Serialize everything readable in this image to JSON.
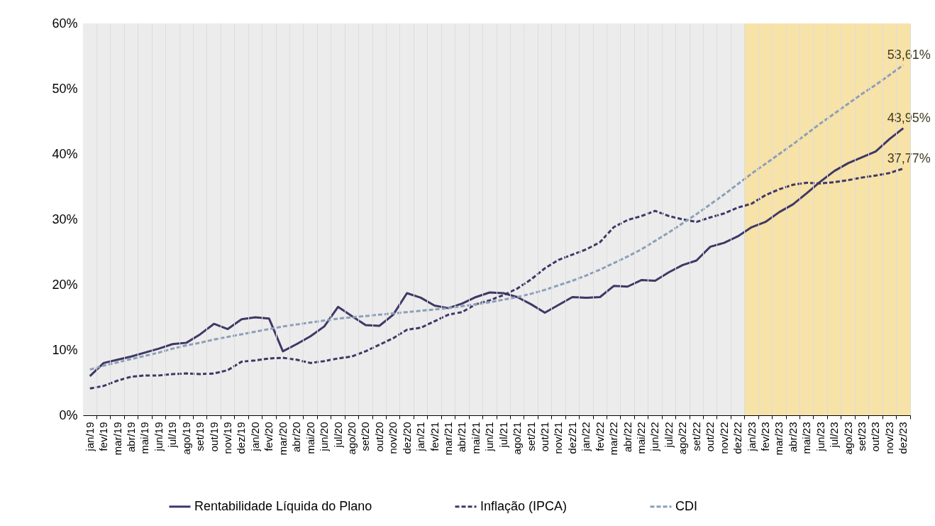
{
  "chart_data": {
    "type": "line",
    "categories": [
      "jan/19",
      "fev/19",
      "mar/19",
      "abr/19",
      "mai/19",
      "jun/19",
      "jul/19",
      "ago/19",
      "set/19",
      "out/19",
      "nov/19",
      "dez/19",
      "jan/20",
      "fev/20",
      "mar/20",
      "abr/20",
      "mai/20",
      "jun/20",
      "jul/20",
      "ago/20",
      "set/20",
      "out/20",
      "nov/20",
      "dez/20",
      "jan/21",
      "fev/21",
      "mar/21",
      "abr/21",
      "mai/21",
      "jun/21",
      "jul/21",
      "ago/21",
      "set/21",
      "out/21",
      "nov/21",
      "dez/21",
      "jan/22",
      "fev/22",
      "mar/22",
      "abr/22",
      "mai/22",
      "jun/22",
      "jul/22",
      "ago/22",
      "set/22",
      "out/22",
      "nov/22",
      "dez/22",
      "jan/23",
      "fev/23",
      "mar/23",
      "abr/23",
      "mai/23",
      "jun/23",
      "jul/23",
      "ago/23",
      "set/23",
      "out/23",
      "nov/23",
      "dez/23"
    ],
    "series": [
      {
        "name": "Rentabilidade Líquida do Plano",
        "color": "#3f3866",
        "line_style": "solid",
        "values": [
          6.0,
          8.0,
          8.5,
          9.0,
          9.6,
          10.2,
          10.9,
          11.1,
          12.4,
          14.0,
          13.2,
          14.7,
          15.0,
          14.8,
          9.8,
          10.9,
          12.1,
          13.6,
          16.6,
          15.2,
          13.8,
          13.7,
          15.4,
          18.7,
          18.0,
          16.8,
          16.4,
          17.1,
          18.1,
          18.8,
          18.7,
          18.1,
          17.0,
          15.7,
          16.9,
          18.1,
          18.0,
          18.1,
          19.8,
          19.7,
          20.7,
          20.6,
          21.9,
          23.0,
          23.7,
          25.8,
          26.4,
          27.4,
          28.8,
          29.6,
          31.1,
          32.3,
          34.0,
          35.8,
          37.4,
          38.6,
          39.5,
          40.4,
          42.3,
          43.95
        ],
        "value_labels": [
          null,
          null,
          null,
          null,
          null,
          null,
          null,
          null,
          null,
          null,
          null,
          null,
          null,
          null,
          null,
          null,
          null,
          null,
          null,
          null,
          null,
          null,
          null,
          null,
          null,
          null,
          null,
          null,
          null,
          null,
          null,
          null,
          null,
          null,
          null,
          null,
          null,
          null,
          null,
          null,
          null,
          null,
          null,
          null,
          null,
          null,
          null,
          null,
          null,
          null,
          null,
          null,
          null,
          null,
          null,
          null,
          null,
          null,
          null,
          "43,95%"
        ]
      },
      {
        "name": "Inflação (IPCA)",
        "color": "#3f3866",
        "line_style": "dashed",
        "values": [
          4.1,
          4.5,
          5.3,
          5.9,
          6.1,
          6.1,
          6.3,
          6.4,
          6.3,
          6.4,
          6.9,
          8.2,
          8.4,
          8.7,
          8.8,
          8.5,
          8.0,
          8.3,
          8.7,
          9.0,
          9.8,
          10.8,
          11.8,
          13.1,
          13.4,
          14.4,
          15.4,
          15.8,
          17.0,
          17.6,
          18.4,
          19.4,
          20.8,
          22.5,
          23.8,
          24.6,
          25.4,
          26.5,
          28.8,
          29.9,
          30.5,
          31.3,
          30.5,
          30.0,
          29.6,
          30.3,
          30.9,
          31.8,
          32.4,
          33.7,
          34.6,
          35.3,
          35.6,
          35.5,
          35.7,
          36.0,
          36.4,
          36.7,
          37.1,
          37.77
        ],
        "value_labels": [
          null,
          null,
          null,
          null,
          null,
          null,
          null,
          null,
          null,
          null,
          null,
          null,
          null,
          null,
          null,
          null,
          null,
          null,
          null,
          null,
          null,
          null,
          null,
          null,
          null,
          null,
          null,
          null,
          null,
          null,
          null,
          null,
          null,
          null,
          null,
          null,
          null,
          null,
          null,
          null,
          null,
          null,
          null,
          null,
          null,
          null,
          null,
          null,
          null,
          null,
          null,
          null,
          null,
          null,
          null,
          null,
          null,
          null,
          null,
          "37,77%"
        ]
      },
      {
        "name": "CDI",
        "color": "#8c9fb8",
        "line_style": "dashed",
        "values": [
          7.0,
          7.6,
          8.1,
          8.6,
          9.1,
          9.6,
          10.2,
          10.7,
          11.1,
          11.6,
          12.0,
          12.4,
          12.8,
          13.2,
          13.6,
          13.9,
          14.2,
          14.5,
          14.8,
          15.0,
          15.2,
          15.4,
          15.6,
          15.8,
          16.0,
          16.2,
          16.4,
          16.7,
          17.0,
          17.3,
          17.7,
          18.1,
          18.6,
          19.2,
          19.9,
          20.6,
          21.4,
          22.3,
          23.3,
          24.3,
          25.4,
          26.7,
          28.0,
          29.4,
          30.8,
          32.3,
          33.8,
          35.4,
          37.0,
          38.5,
          40.0,
          41.5,
          43.1,
          44.7,
          46.2,
          47.7,
          49.2,
          50.6,
          52.1,
          53.61
        ],
        "value_labels": [
          null,
          null,
          null,
          null,
          null,
          null,
          null,
          null,
          null,
          null,
          null,
          null,
          null,
          null,
          null,
          null,
          null,
          null,
          null,
          null,
          null,
          null,
          null,
          null,
          null,
          null,
          null,
          null,
          null,
          null,
          null,
          null,
          null,
          null,
          null,
          null,
          null,
          null,
          null,
          null,
          null,
          null,
          null,
          null,
          null,
          null,
          null,
          null,
          null,
          null,
          null,
          null,
          null,
          null,
          null,
          null,
          null,
          null,
          null,
          "53,61%"
        ]
      }
    ],
    "ylim": [
      0,
      60
    ],
    "yticks": [
      {
        "value": 0,
        "label": "0%"
      },
      {
        "value": 10,
        "label": "10%"
      },
      {
        "value": 20,
        "label": "20%"
      },
      {
        "value": 30,
        "label": "30%"
      },
      {
        "value": 40,
        "label": "40%"
      },
      {
        "value": 50,
        "label": "50%"
      },
      {
        "value": 60,
        "label": "60%"
      }
    ],
    "bands": [
      {
        "axis": "x",
        "from": "jan/19",
        "to": "dez/22",
        "color": "#ececec"
      },
      {
        "axis": "x",
        "from": "jan/23",
        "to": "dez/23",
        "color": "#f7e2a8"
      }
    ],
    "grid": true,
    "legend": "bottom"
  }
}
